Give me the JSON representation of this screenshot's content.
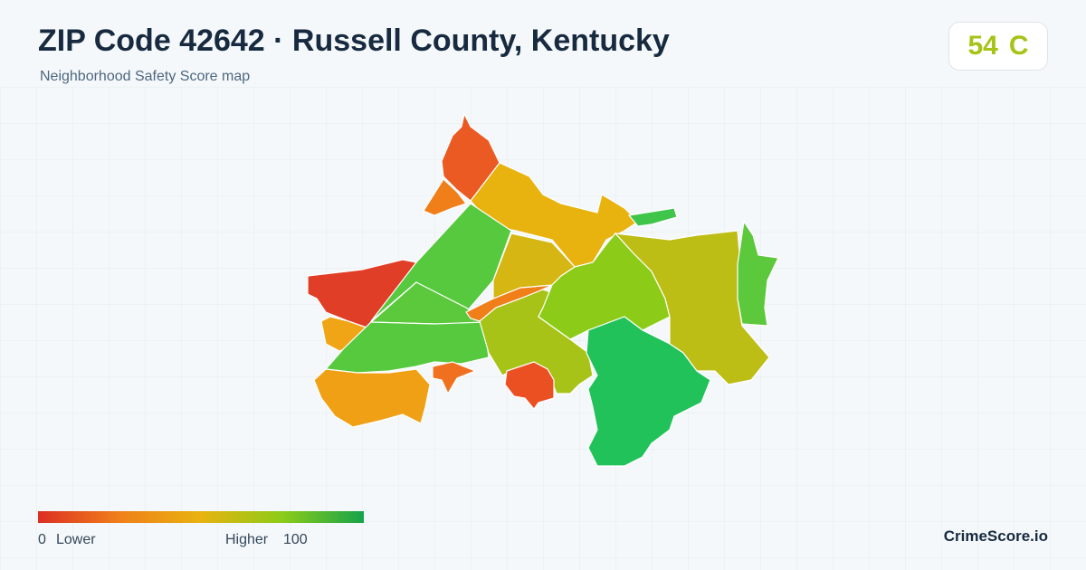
{
  "header": {
    "title": "ZIP Code 42642 · Russell County, Kentucky",
    "subtitle": "Neighborhood Safety Score map"
  },
  "score": {
    "value": "54",
    "grade": "C"
  },
  "legend": {
    "min": "0",
    "min_label": "Lower",
    "max_label": "Higher",
    "max": "100"
  },
  "brand": "CrimeScore.io"
}
